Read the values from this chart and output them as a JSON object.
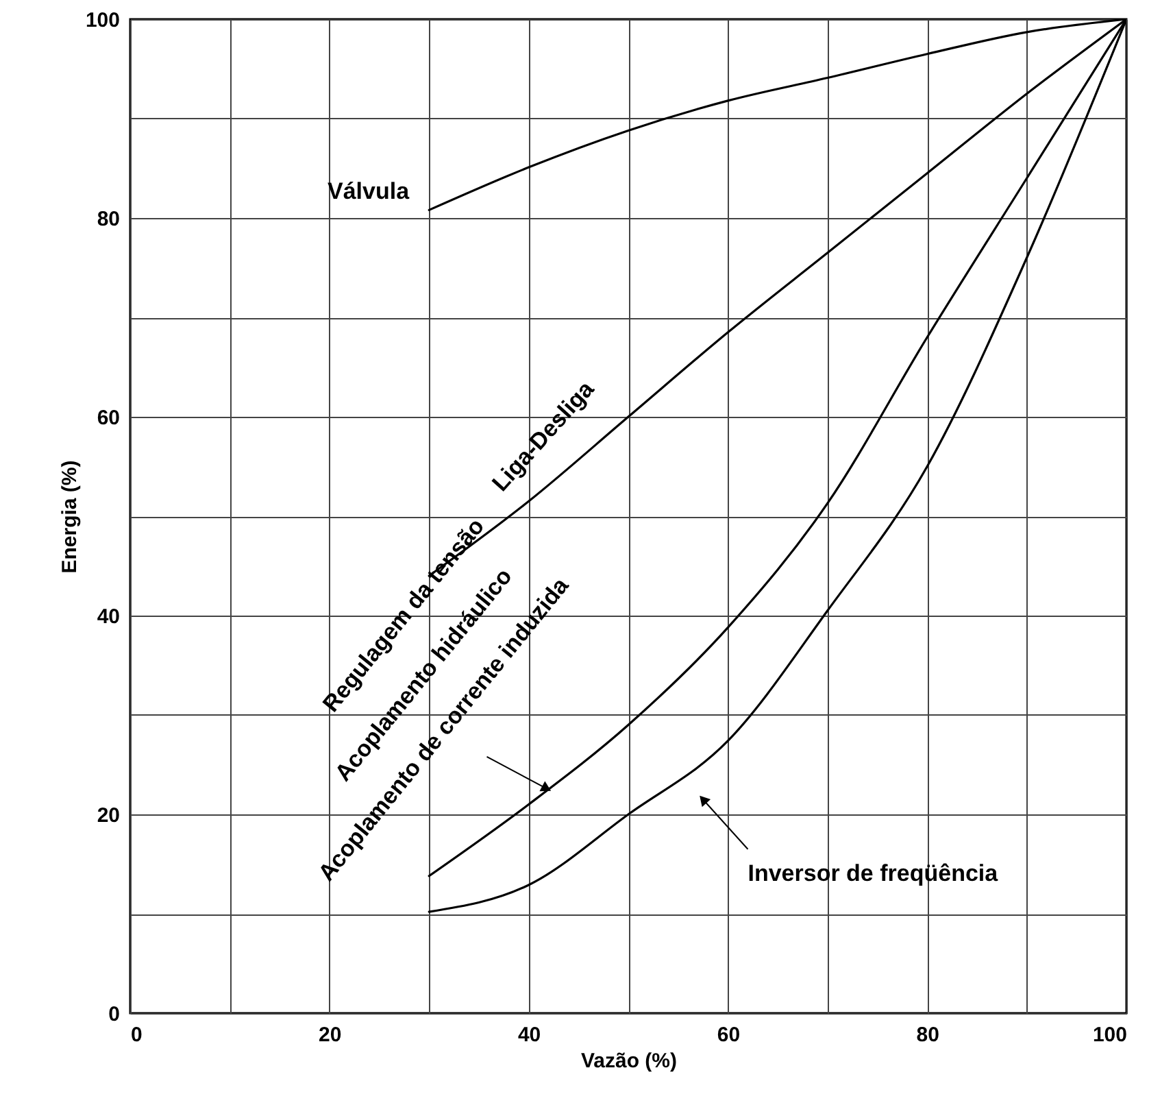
{
  "chart_data": {
    "type": "line",
    "xlabel": "Vazão (%)",
    "ylabel": "Energia (%)",
    "xlim": [
      0,
      100
    ],
    "ylim": [
      0,
      100
    ],
    "xticks": [
      0,
      {
        "value": 10,
        "label": null
      },
      20,
      {
        "value": 30,
        "label": null
      },
      40,
      {
        "value": 50,
        "label": null
      },
      60,
      {
        "value": 70,
        "label": null
      },
      80,
      {
        "value": 90,
        "label": null
      },
      100
    ],
    "yticks": [
      0,
      {
        "value": 10,
        "label": null
      },
      20,
      {
        "value": 30,
        "label": null
      },
      40,
      {
        "value": 50,
        "label": null
      },
      60,
      {
        "value": 70,
        "label": null
      },
      80,
      {
        "value": 90,
        "label": null
      },
      100
    ],
    "grid": true,
    "x": [
      30,
      40,
      50,
      60,
      70,
      80,
      90,
      100
    ],
    "series": [
      {
        "name": "Válvula",
        "color": "#000000",
        "values": [
          80.8,
          85.1,
          88.8,
          91.8,
          94.1,
          96.5,
          98.7,
          100
        ]
      },
      {
        "name": "Liga-Desliga",
        "color": "#000000",
        "values": [
          44,
          51.5,
          60,
          68.5,
          76.5,
          84.5,
          92.5,
          100
        ]
      },
      {
        "color": "#000000",
        "values": [
          13.8,
          21,
          29,
          38.8,
          51.3,
          68,
          84,
          100
        ]
      },
      {
        "name": "Inversor de freqüência",
        "color": "#000000",
        "values": [
          10.2,
          12.9,
          20,
          27.4,
          40.5,
          55,
          76,
          100
        ]
      }
    ],
    "annotations": [
      "Regulagem da tensão",
      "Acoplamento hidráulico",
      "Acoplamento de corrente induzida"
    ]
  }
}
